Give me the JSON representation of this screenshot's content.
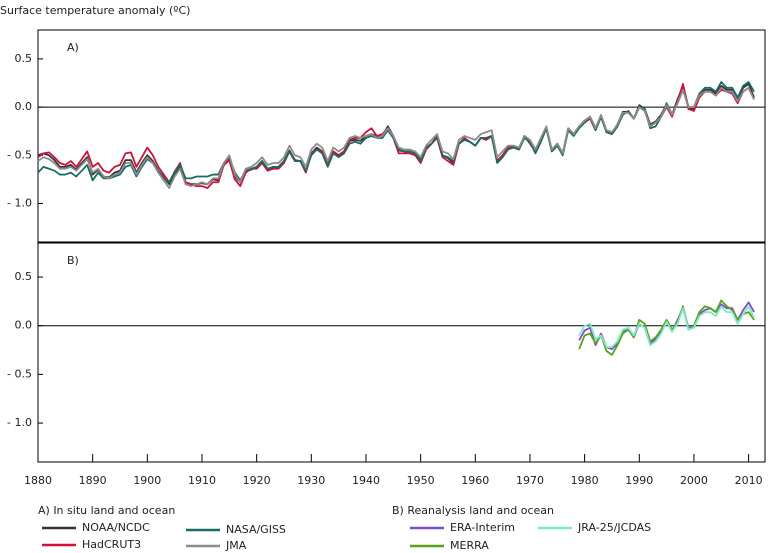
{
  "chart_data": [
    {
      "type": "line",
      "title": "Surface temperature anomaly (ºC)",
      "panel_label": "A)",
      "legend_title": "A) In situ land and ocean",
      "zero_line": true,
      "xlim": [
        1880,
        2013
      ],
      "ylim": [
        -1.4,
        0.8
      ],
      "yticks": [
        0.5,
        {
          "value": 0,
          "label": "0.0"
        },
        {
          "value": -0.5,
          "label": "- 0.5"
        },
        {
          "value": -1.0,
          "label": "- 1.0"
        }
      ],
      "x": [
        1880,
        1881,
        1882,
        1883,
        1884,
        1885,
        1886,
        1887,
        1888,
        1889,
        1890,
        1891,
        1892,
        1893,
        1894,
        1895,
        1896,
        1897,
        1898,
        1899,
        1900,
        1901,
        1902,
        1903,
        1904,
        1905,
        1906,
        1907,
        1908,
        1909,
        1910,
        1911,
        1912,
        1913,
        1914,
        1915,
        1916,
        1917,
        1918,
        1919,
        1920,
        1921,
        1922,
        1923,
        1924,
        1925,
        1926,
        1927,
        1928,
        1929,
        1930,
        1931,
        1932,
        1933,
        1934,
        1935,
        1936,
        1937,
        1938,
        1939,
        1940,
        1941,
        1942,
        1943,
        1944,
        1945,
        1946,
        1947,
        1948,
        1949,
        1950,
        1951,
        1952,
        1953,
        1954,
        1955,
        1956,
        1957,
        1958,
        1959,
        1960,
        1961,
        1962,
        1963,
        1964,
        1965,
        1966,
        1967,
        1968,
        1969,
        1970,
        1971,
        1972,
        1973,
        1974,
        1975,
        1976,
        1977,
        1978,
        1979,
        1980,
        1981,
        1982,
        1983,
        1984,
        1985,
        1986,
        1987,
        1988,
        1989,
        1990,
        1991,
        1992,
        1993,
        1994,
        1995,
        1996,
        1997,
        1998,
        1999,
        2000,
        2001,
        2002,
        2003,
        2004,
        2005,
        2006,
        2007,
        2008,
        2009,
        2010,
        2011
      ],
      "series": [
        {
          "name": "NOAA/NCDC",
          "color": "#333333",
          "values": [
            -0.5,
            -0.48,
            -0.5,
            -0.55,
            -0.62,
            -0.62,
            -0.6,
            -0.65,
            -0.58,
            -0.52,
            -0.7,
            -0.65,
            -0.72,
            -0.73,
            -0.68,
            -0.66,
            -0.55,
            -0.55,
            -0.68,
            -0.58,
            -0.5,
            -0.56,
            -0.66,
            -0.73,
            -0.8,
            -0.7,
            -0.62,
            -0.78,
            -0.8,
            -0.8,
            -0.79,
            -0.8,
            -0.75,
            -0.76,
            -0.6,
            -0.53,
            -0.72,
            -0.78,
            -0.66,
            -0.65,
            -0.62,
            -0.56,
            -0.64,
            -0.63,
            -0.62,
            -0.56,
            -0.45,
            -0.55,
            -0.56,
            -0.67,
            -0.48,
            -0.42,
            -0.46,
            -0.6,
            -0.46,
            -0.5,
            -0.46,
            -0.35,
            -0.34,
            -0.35,
            -0.3,
            -0.28,
            -0.3,
            -0.3,
            -0.2,
            -0.3,
            -0.45,
            -0.46,
            -0.46,
            -0.48,
            -0.55,
            -0.42,
            -0.38,
            -0.3,
            -0.5,
            -0.53,
            -0.58,
            -0.38,
            -0.33,
            -0.36,
            -0.4,
            -0.32,
            -0.32,
            -0.3,
            -0.56,
            -0.5,
            -0.42,
            -0.42,
            -0.43,
            -0.3,
            -0.36,
            -0.46,
            -0.33,
            -0.21,
            -0.45,
            -0.38,
            -0.48,
            -0.22,
            -0.28,
            -0.2,
            -0.14,
            -0.1,
            -0.22,
            -0.1,
            -0.25,
            -0.27,
            -0.18,
            -0.05,
            -0.05,
            -0.12,
            0.02,
            -0.02,
            -0.18,
            -0.15,
            -0.08,
            0.03,
            -0.08,
            0.08,
            0.22,
            0.0,
            -0.02,
            0.12,
            0.18,
            0.18,
            0.14,
            0.22,
            0.18,
            0.18,
            0.08,
            0.2,
            0.24,
            0.1
          ]
        },
        {
          "name": "HadCRUT3",
          "color": "#d0103a",
          "values": [
            -0.52,
            -0.48,
            -0.47,
            -0.52,
            -0.58,
            -0.6,
            -0.56,
            -0.62,
            -0.54,
            -0.46,
            -0.62,
            -0.58,
            -0.66,
            -0.68,
            -0.62,
            -0.6,
            -0.48,
            -0.47,
            -0.62,
            -0.52,
            -0.42,
            -0.5,
            -0.62,
            -0.7,
            -0.78,
            -0.67,
            -0.58,
            -0.78,
            -0.8,
            -0.82,
            -0.82,
            -0.84,
            -0.78,
            -0.78,
            -0.6,
            -0.55,
            -0.75,
            -0.82,
            -0.68,
            -0.64,
            -0.64,
            -0.58,
            -0.66,
            -0.64,
            -0.64,
            -0.58,
            -0.46,
            -0.56,
            -0.56,
            -0.68,
            -0.48,
            -0.44,
            -0.46,
            -0.6,
            -0.46,
            -0.5,
            -0.46,
            -0.34,
            -0.32,
            -0.32,
            -0.26,
            -0.22,
            -0.3,
            -0.28,
            -0.22,
            -0.32,
            -0.48,
            -0.48,
            -0.48,
            -0.5,
            -0.58,
            -0.44,
            -0.38,
            -0.32,
            -0.52,
            -0.56,
            -0.6,
            -0.38,
            -0.32,
            -0.36,
            -0.4,
            -0.32,
            -0.34,
            -0.3,
            -0.56,
            -0.5,
            -0.42,
            -0.42,
            -0.44,
            -0.3,
            -0.38,
            -0.46,
            -0.34,
            -0.22,
            -0.46,
            -0.4,
            -0.48,
            -0.24,
            -0.28,
            -0.2,
            -0.16,
            -0.12,
            -0.24,
            -0.1,
            -0.26,
            -0.28,
            -0.2,
            -0.06,
            -0.05,
            -0.12,
            0.0,
            -0.04,
            -0.2,
            -0.16,
            -0.1,
            0.0,
            -0.1,
            0.06,
            0.24,
            -0.02,
            -0.04,
            0.1,
            0.16,
            0.16,
            0.12,
            0.18,
            0.16,
            0.14,
            0.04,
            0.16,
            0.2,
            0.08
          ]
        },
        {
          "name": "NASA/GISS",
          "color": "#1a6b66",
          "values": [
            -0.68,
            -0.62,
            -0.64,
            -0.66,
            -0.7,
            -0.7,
            -0.68,
            -0.72,
            -0.66,
            -0.6,
            -0.76,
            -0.68,
            -0.74,
            -0.74,
            -0.72,
            -0.7,
            -0.62,
            -0.6,
            -0.72,
            -0.62,
            -0.54,
            -0.58,
            -0.66,
            -0.74,
            -0.78,
            -0.68,
            -0.6,
            -0.74,
            -0.74,
            -0.72,
            -0.72,
            -0.72,
            -0.7,
            -0.7,
            -0.58,
            -0.52,
            -0.68,
            -0.76,
            -0.66,
            -0.64,
            -0.62,
            -0.56,
            -0.64,
            -0.62,
            -0.62,
            -0.56,
            -0.46,
            -0.56,
            -0.56,
            -0.66,
            -0.5,
            -0.44,
            -0.48,
            -0.62,
            -0.48,
            -0.52,
            -0.48,
            -0.38,
            -0.36,
            -0.38,
            -0.32,
            -0.3,
            -0.32,
            -0.32,
            -0.24,
            -0.32,
            -0.44,
            -0.46,
            -0.46,
            -0.48,
            -0.56,
            -0.42,
            -0.38,
            -0.3,
            -0.5,
            -0.52,
            -0.56,
            -0.38,
            -0.34,
            -0.36,
            -0.4,
            -0.32,
            -0.32,
            -0.3,
            -0.58,
            -0.52,
            -0.44,
            -0.42,
            -0.44,
            -0.32,
            -0.36,
            -0.48,
            -0.36,
            -0.22,
            -0.46,
            -0.4,
            -0.5,
            -0.24,
            -0.3,
            -0.22,
            -0.16,
            -0.1,
            -0.24,
            -0.1,
            -0.26,
            -0.28,
            -0.2,
            -0.08,
            -0.04,
            -0.12,
            0.0,
            -0.02,
            -0.22,
            -0.2,
            -0.1,
            0.04,
            -0.08,
            0.04,
            0.18,
            0.0,
            0.0,
            0.14,
            0.2,
            0.2,
            0.16,
            0.26,
            0.2,
            0.2,
            0.1,
            0.22,
            0.26,
            0.16
          ]
        },
        {
          "name": "JMA",
          "color": "#8c8c8c",
          "values": [
            -0.56,
            -0.52,
            -0.54,
            -0.58,
            -0.64,
            -0.64,
            -0.62,
            -0.66,
            -0.6,
            -0.54,
            -0.68,
            -0.64,
            -0.72,
            -0.74,
            -0.7,
            -0.68,
            -0.58,
            -0.58,
            -0.7,
            -0.6,
            -0.52,
            -0.58,
            -0.68,
            -0.76,
            -0.84,
            -0.72,
            -0.64,
            -0.8,
            -0.82,
            -0.8,
            -0.78,
            -0.8,
            -0.74,
            -0.74,
            -0.58,
            -0.5,
            -0.7,
            -0.78,
            -0.64,
            -0.62,
            -0.58,
            -0.52,
            -0.6,
            -0.58,
            -0.58,
            -0.52,
            -0.4,
            -0.5,
            -0.52,
            -0.62,
            -0.44,
            -0.38,
            -0.42,
            -0.56,
            -0.42,
            -0.46,
            -0.42,
            -0.32,
            -0.3,
            -0.32,
            -0.3,
            -0.28,
            -0.32,
            -0.3,
            -0.22,
            -0.3,
            -0.42,
            -0.44,
            -0.44,
            -0.46,
            -0.52,
            -0.4,
            -0.34,
            -0.28,
            -0.46,
            -0.48,
            -0.54,
            -0.34,
            -0.3,
            -0.32,
            -0.34,
            -0.28,
            -0.26,
            -0.24,
            -0.52,
            -0.46,
            -0.4,
            -0.4,
            -0.42,
            -0.3,
            -0.34,
            -0.44,
            -0.32,
            -0.2,
            -0.44,
            -0.38,
            -0.48,
            -0.22,
            -0.28,
            -0.2,
            -0.14,
            -0.1,
            -0.22,
            -0.08,
            -0.24,
            -0.26,
            -0.18,
            -0.06,
            -0.06,
            -0.12,
            0.0,
            -0.04,
            -0.2,
            -0.16,
            -0.1,
            0.02,
            -0.08,
            0.04,
            0.18,
            0.0,
            0.0,
            0.12,
            0.16,
            0.16,
            0.12,
            0.2,
            0.16,
            0.16,
            0.06,
            0.16,
            0.2,
            0.08
          ]
        }
      ]
    },
    {
      "type": "line",
      "panel_label": "B)",
      "legend_title": "B) Reanalysis land and ocean",
      "zero_line": true,
      "xlim": [
        1880,
        2013
      ],
      "xticks": [
        1880,
        1890,
        1900,
        1910,
        1920,
        1930,
        1940,
        1950,
        1960,
        1970,
        1980,
        1990,
        2000,
        2010
      ],
      "ylim": [
        -1.4,
        0.85
      ],
      "yticks": [
        0.5,
        {
          "value": 0,
          "label": "0.0"
        },
        {
          "value": -0.5,
          "label": "- 0.5"
        },
        {
          "value": -1.0,
          "label": "- 1.0"
        }
      ],
      "x": [
        1979,
        1980,
        1981,
        1982,
        1983,
        1984,
        1985,
        1986,
        1987,
        1988,
        1989,
        1990,
        1991,
        1992,
        1993,
        1994,
        1995,
        1996,
        1997,
        1998,
        1999,
        2000,
        2001,
        2002,
        2003,
        2004,
        2005,
        2006,
        2007,
        2008,
        2009,
        2010,
        2011
      ],
      "series": [
        {
          "name": "ERA-Interim",
          "color": "#7b4fd0",
          "values": [
            -0.15,
            -0.05,
            -0.02,
            -0.2,
            -0.08,
            -0.22,
            -0.24,
            -0.18,
            -0.06,
            -0.04,
            -0.12,
            0.02,
            -0.02,
            -0.18,
            -0.14,
            -0.06,
            0.04,
            -0.06,
            0.06,
            0.18,
            -0.02,
            -0.02,
            0.12,
            0.16,
            0.18,
            0.14,
            0.22,
            0.18,
            0.18,
            0.06,
            0.16,
            0.24,
            0.14
          ]
        },
        {
          "name": "MERRA",
          "color": "#5aa01e",
          "values": [
            -0.24,
            -0.1,
            -0.08,
            -0.18,
            -0.1,
            -0.26,
            -0.3,
            -0.2,
            -0.08,
            -0.04,
            -0.12,
            0.06,
            0.02,
            -0.16,
            -0.12,
            -0.04,
            0.06,
            -0.04,
            0.04,
            0.2,
            -0.04,
            0.0,
            0.14,
            0.2,
            0.18,
            0.14,
            0.26,
            0.2,
            0.16,
            0.06,
            0.12,
            0.14,
            0.06
          ]
        },
        {
          "name": "JRA-25/JCDAS",
          "color": "#7fe8c8",
          "values": [
            -0.1,
            0.0,
            0.02,
            -0.14,
            -0.1,
            -0.22,
            -0.22,
            -0.16,
            -0.04,
            -0.02,
            -0.1,
            0.02,
            -0.02,
            -0.2,
            -0.16,
            -0.08,
            0.04,
            -0.06,
            0.02,
            0.18,
            -0.04,
            -0.02,
            0.1,
            0.14,
            0.14,
            0.1,
            0.2,
            0.14,
            0.14,
            0.02,
            0.12,
            0.2,
            0.08
          ]
        }
      ]
    }
  ]
}
